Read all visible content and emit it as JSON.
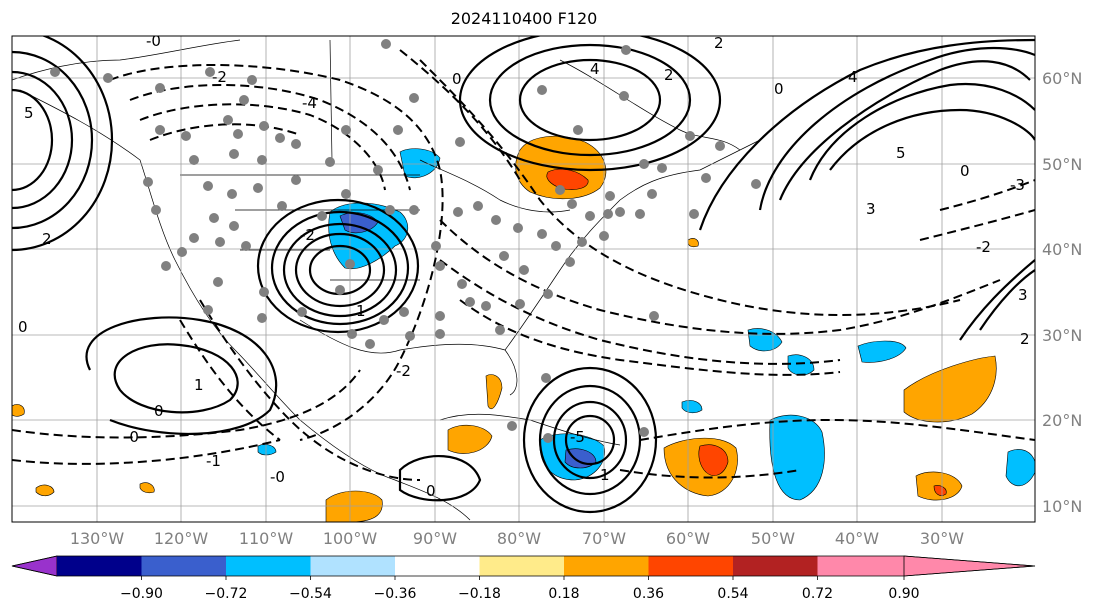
{
  "title": "2024110400 F120",
  "map": {
    "lon_range": [
      -140,
      -19
    ],
    "lat_range": [
      8,
      65
    ],
    "projection": "cylindrical"
  },
  "lat_labels": [
    "10°N",
    "20°N",
    "30°N",
    "40°N",
    "50°N",
    "60°N"
  ],
  "lat_values": [
    10,
    20,
    30,
    40,
    50,
    60
  ],
  "lon_labels": [
    "130°W",
    "120°W",
    "110°W",
    "100°W",
    "90°W",
    "80°W",
    "70°W",
    "60°W",
    "50°W",
    "40°W",
    "30°W"
  ],
  "lon_values": [
    -130,
    -120,
    -110,
    -100,
    -90,
    -80,
    -70,
    -60,
    -50,
    -40,
    -30
  ],
  "contour_labels": [
    "-0",
    "0",
    "-4",
    "-2",
    "2",
    "4",
    "5",
    "3",
    "1",
    "-1",
    "-3",
    "-5"
  ],
  "colorbar": {
    "tick_labels": [
      "−0.90",
      "−0.72",
      "−0.54",
      "−0.36",
      "−0.18",
      "0.18",
      "0.36",
      "0.54",
      "0.72",
      "0.90"
    ],
    "colors": [
      "#9932cc",
      "#00008b",
      "#3a5fcd",
      "#00bfff",
      "#b0e2ff",
      "#ffffff",
      "#ffeb8a",
      "#ffa500",
      "#ff4500",
      "#b22222",
      "#ff88aa"
    ],
    "extend": "both"
  },
  "colors": {
    "grid": "#a0a0a0",
    "contour": "#000000",
    "station_dot": "#808080"
  }
}
